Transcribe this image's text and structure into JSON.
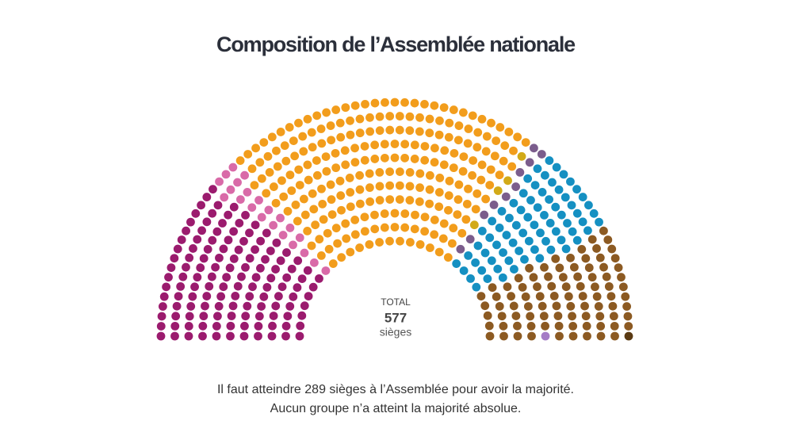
{
  "chart_data": {
    "type": "parliament",
    "title": "Composition de l’Assemblée nationale",
    "center_label": "TOTAL",
    "total": 577,
    "total_unit": "sièges",
    "values": [
      131,
      22,
      245,
      4,
      10,
      74,
      89,
      1,
      1
    ],
    "colors": [
      "#9b1b6e",
      "#d96aa8",
      "#f29d1c",
      "#d2aa18",
      "#7b5d8c",
      "#1590c2",
      "#8c5a22",
      "#5a3a12",
      "#a57cc6"
    ],
    "notes": [
      "Il faut atteindre 289 sièges à l’Assemblée pour avoir la majorité.",
      "Aucun groupe n’a atteint la majorité absolue."
    ]
  }
}
